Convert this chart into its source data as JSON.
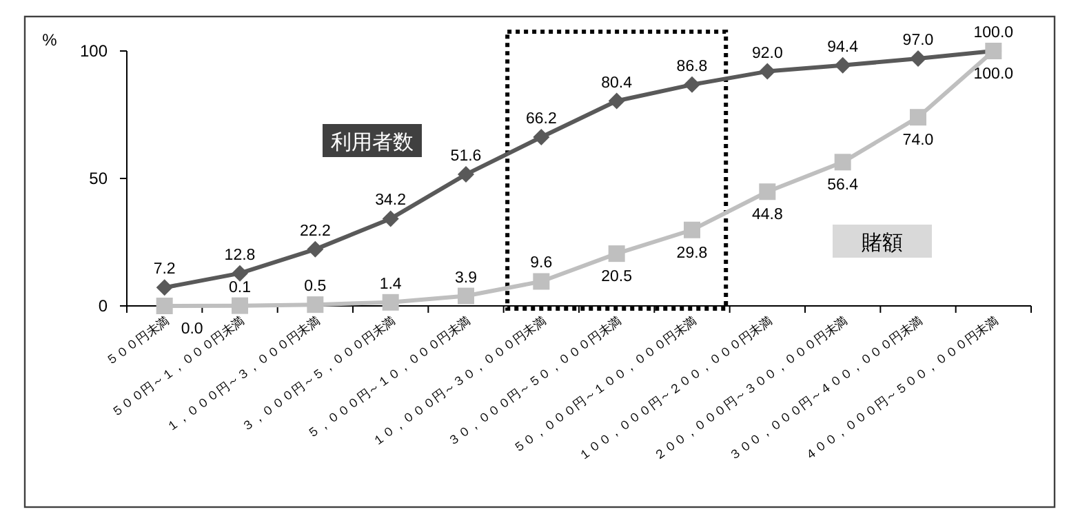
{
  "chart_data": {
    "type": "line",
    "ylabel": "%",
    "categories": [
      "５００円未満",
      "５００円～１，０００円未満",
      "１，０００円～３，０００円未満",
      "３，０００円～５，０００円未満",
      "５，０００円～１０，０００円未満",
      "１０，０００円～３０，０００円未満",
      "３０，０００円～５０，０００円未満",
      "５０，０００円～１００，０００円未満",
      "１００，０００円～２００，０００円未満",
      "２００，０００円～３００，０００円未満",
      "３００，０００円～４００，０００円未満",
      "４００，０００円～５００，０００円未満"
    ],
    "series": [
      {
        "name": "利用者数",
        "color": "#595959",
        "marker": "diamond",
        "values": [
          7.2,
          12.8,
          22.2,
          34.2,
          51.6,
          66.2,
          80.4,
          86.8,
          92.0,
          94.4,
          97.0,
          100.0
        ],
        "value_labels": [
          "7.2",
          "12.8",
          "22.2",
          "34.2",
          "51.6",
          "66.2",
          "80.4",
          "86.8",
          "92.0",
          "94.4",
          "97.0",
          "100.0"
        ]
      },
      {
        "name": "賭額",
        "color": "#bfbfbf",
        "marker": "square",
        "values": [
          0.0,
          0.1,
          0.5,
          1.4,
          3.9,
          9.6,
          20.5,
          29.8,
          44.8,
          56.4,
          74.0,
          100.0
        ],
        "value_labels": [
          "0.0",
          "0.1",
          "0.5",
          "1.4",
          "3.9",
          "9.6",
          "20.5",
          "29.8",
          "44.8",
          "56.4",
          "74.0",
          "100.0"
        ]
      }
    ],
    "ylim": [
      0,
      100
    ],
    "yticks": [
      0,
      50,
      100
    ]
  }
}
